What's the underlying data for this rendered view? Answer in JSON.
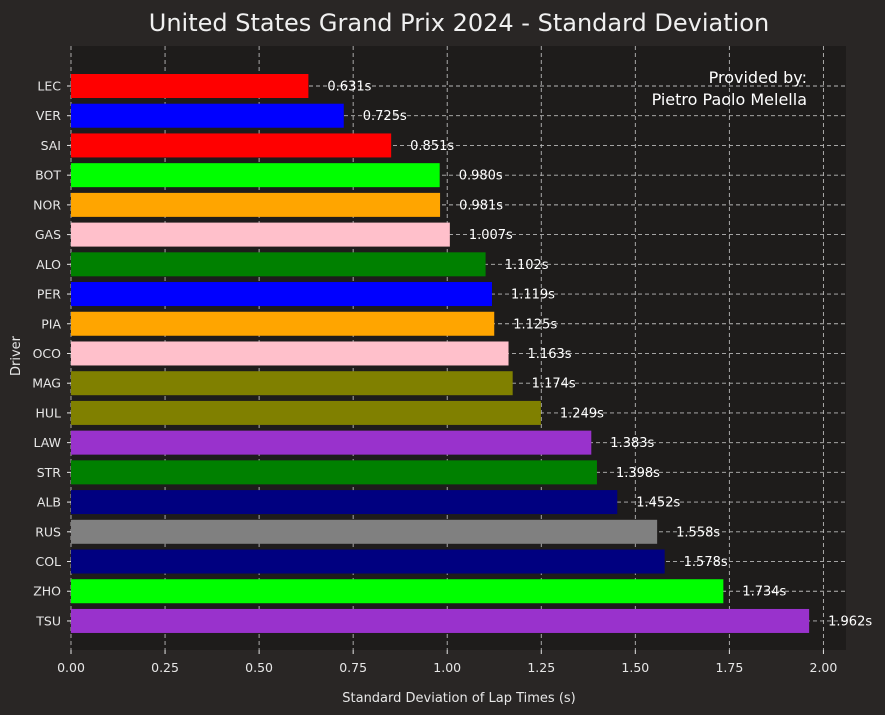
{
  "chart_data": {
    "type": "bar",
    "orientation": "horizontal",
    "title": "United States Grand Prix 2024 - Standard Deviation",
    "xlabel": "Standard Deviation of Lap Times (s)",
    "ylabel": "Driver",
    "xlim": [
      0,
      2.06
    ],
    "xticks": [
      "0.00",
      "0.25",
      "0.50",
      "0.75",
      "1.00",
      "1.25",
      "1.50",
      "1.75",
      "2.00"
    ],
    "grid": true,
    "value_suffix": "s",
    "annotation": [
      "Provided by:",
      "Pietro Paolo Melella"
    ],
    "categories": [
      "LEC",
      "VER",
      "SAI",
      "BOT",
      "NOR",
      "GAS",
      "ALO",
      "PER",
      "PIA",
      "OCO",
      "MAG",
      "HUL",
      "LAW",
      "STR",
      "ALB",
      "RUS",
      "COL",
      "ZHO",
      "TSU"
    ],
    "values": [
      0.631,
      0.725,
      0.851,
      0.98,
      0.981,
      1.007,
      1.102,
      1.119,
      1.125,
      1.163,
      1.174,
      1.249,
      1.383,
      1.398,
      1.452,
      1.558,
      1.578,
      1.734,
      1.962
    ],
    "value_labels": [
      "0.631s",
      "0.725s",
      "0.851s",
      "0.980s",
      "0.981s",
      "1.007s",
      "1.102s",
      "1.119s",
      "1.125s",
      "1.163s",
      "1.174s",
      "1.249s",
      "1.383s",
      "1.398s",
      "1.452s",
      "1.558s",
      "1.578s",
      "1.734s",
      "1.962s"
    ],
    "colors": [
      "#ff0000",
      "#0000ff",
      "#ff0000",
      "#00ff00",
      "#ffa500",
      "#ffc0cb",
      "#008000",
      "#0000ff",
      "#ffa500",
      "#ffc0cb",
      "#808000",
      "#808000",
      "#9932cc",
      "#008000",
      "#000080",
      "#808080",
      "#000080",
      "#00ff00",
      "#9932cc"
    ],
    "background": "#292625",
    "plot_background": "#1e1c1b"
  }
}
